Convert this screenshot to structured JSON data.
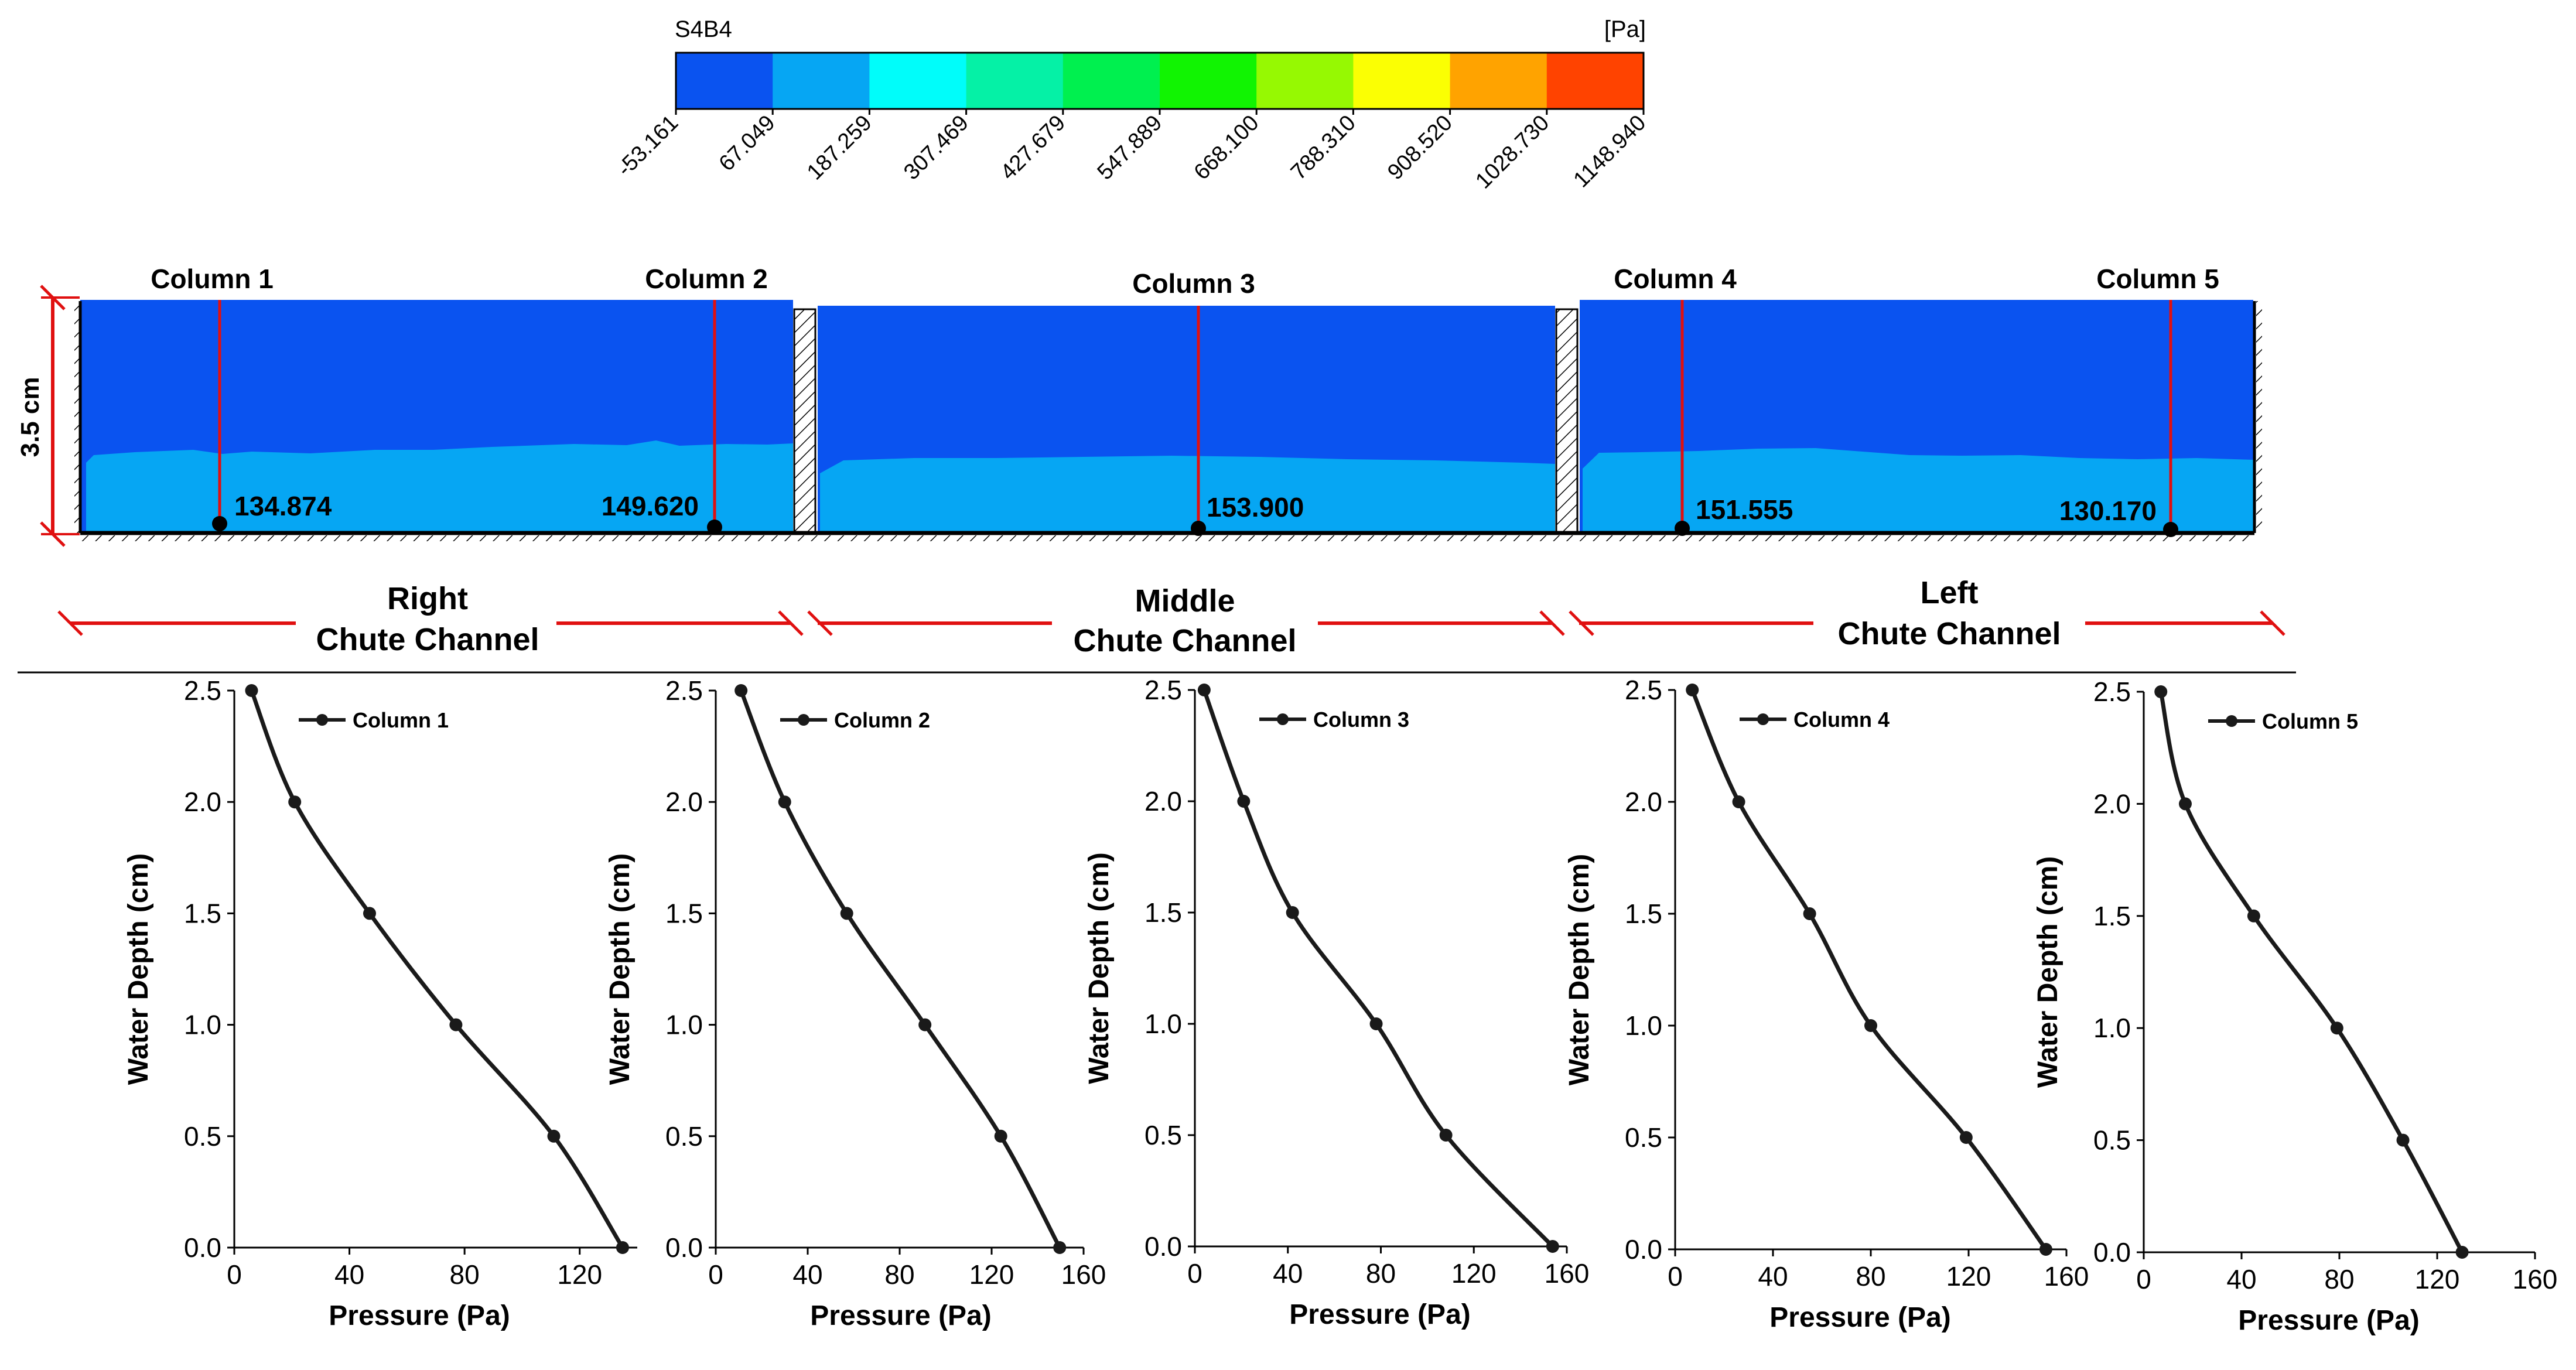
{
  "figure": {
    "colorbar": {
      "title": "S4B4",
      "unit": "[Pa]",
      "colors": [
        "#0a53f0",
        "#06a6f3",
        "#00fdfa",
        "#05f1a6",
        "#00f04f",
        "#11f402",
        "#96f902",
        "#fbff03",
        "#ffa300",
        "#ff4300"
      ],
      "tick_labels": [
        "-53.161",
        "67.049",
        "187.259",
        "307.469",
        "427.679",
        "547.889",
        "668.100",
        "788.310",
        "908.520",
        "1028.730",
        "1148.940"
      ]
    },
    "contour": {
      "height_label": "3.5 cm",
      "colors": {
        "air": "#0a53f0",
        "water": "#06a6f3",
        "marker": "#e01010"
      },
      "columns": [
        {
          "name": "Column 1",
          "value": "134.874"
        },
        {
          "name": "Column 2",
          "value": "149.620"
        },
        {
          "name": "Column 3",
          "value": "153.900"
        },
        {
          "name": "Column 4",
          "value": "151.555"
        },
        {
          "name": "Column 5",
          "value": "130.170"
        }
      ],
      "channels": [
        {
          "line1": "Right",
          "line2": "Chute Channel"
        },
        {
          "line1": "Middle",
          "line2": "Chute Channel"
        },
        {
          "line1": "Left",
          "line2": "Chute Channel"
        }
      ]
    }
  },
  "chart_data": [
    {
      "type": "line",
      "title": "",
      "legend": "Column 1",
      "xlabel": "Pressure (Pa)",
      "ylabel": "Water Depth (cm)",
      "xlim": [
        0,
        140
      ],
      "ylim": [
        0,
        2.5
      ],
      "xticks": [
        "0",
        "40",
        "80",
        "120"
      ],
      "yticks": [
        "0.0",
        "0.5",
        "1.0",
        "1.5",
        "2.0",
        "2.5"
      ],
      "x": [
        134.9,
        111,
        77,
        47,
        21,
        6
      ],
      "y": [
        0,
        0.5,
        1.0,
        1.5,
        2.0,
        2.5
      ]
    },
    {
      "type": "line",
      "title": "",
      "legend": "Column 2",
      "xlabel": "Pressure (Pa)",
      "ylabel": "Water Depth (cm)",
      "xlim": [
        0,
        160
      ],
      "ylim": [
        0,
        2.5
      ],
      "xticks": [
        "0",
        "40",
        "80",
        "120",
        "160"
      ],
      "yticks": [
        "0.0",
        "0.5",
        "1.0",
        "1.5",
        "2.0",
        "2.5"
      ],
      "x": [
        149.6,
        124,
        91,
        57,
        30,
        11
      ],
      "y": [
        0,
        0.5,
        1.0,
        1.5,
        2.0,
        2.5
      ]
    },
    {
      "type": "line",
      "title": "",
      "legend": "Column 3",
      "xlabel": "Pressure (Pa)",
      "ylabel": "Water Depth (cm)",
      "xlim": [
        0,
        160
      ],
      "ylim": [
        0,
        2.5
      ],
      "xticks": [
        "0",
        "40",
        "80",
        "120",
        "160"
      ],
      "yticks": [
        "0.0",
        "0.5",
        "1.0",
        "1.5",
        "2.0",
        "2.5"
      ],
      "x": [
        153.9,
        108,
        78,
        42,
        21,
        4
      ],
      "y": [
        0,
        0.5,
        1.0,
        1.5,
        2.0,
        2.5
      ]
    },
    {
      "type": "line",
      "title": "",
      "legend": "Column 4",
      "xlabel": "Pressure (Pa)",
      "ylabel": "Water Depth (cm)",
      "xlim": [
        0,
        160
      ],
      "ylim": [
        0,
        2.5
      ],
      "xticks": [
        "0",
        "40",
        "80",
        "120",
        "160"
      ],
      "yticks": [
        "0.0",
        "0.5",
        "1.0",
        "1.5",
        "2.0",
        "2.5"
      ],
      "x": [
        151.6,
        119,
        80,
        55,
        26,
        7
      ],
      "y": [
        0,
        0.5,
        1.0,
        1.5,
        2.0,
        2.5
      ]
    },
    {
      "type": "line",
      "title": "",
      "legend": "Column 5",
      "xlabel": "Pressure (Pa)",
      "ylabel": "Water Depth (cm)",
      "xlim": [
        0,
        160
      ],
      "ylim": [
        0,
        2.5
      ],
      "xticks": [
        "0",
        "40",
        "80",
        "120",
        "160"
      ],
      "yticks": [
        "0.0",
        "0.5",
        "1.0",
        "1.5",
        "2.0",
        "2.5"
      ],
      "x": [
        130.2,
        106,
        79,
        45,
        17,
        7
      ],
      "y": [
        0,
        0.5,
        1.0,
        1.5,
        2.0,
        2.5
      ]
    }
  ]
}
